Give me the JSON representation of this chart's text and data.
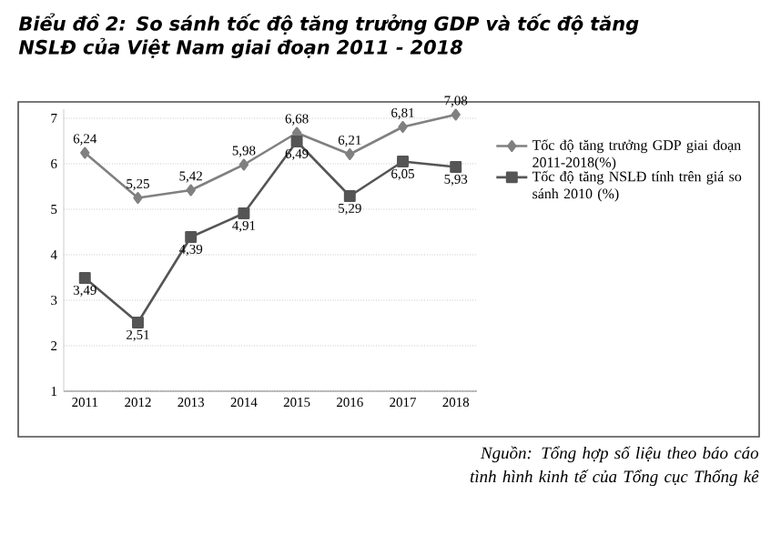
{
  "chart_data": {
    "type": "line",
    "title": "Biểu đồ 2: So sánh tốc độ tăng trưởng GDP và tốc độ tăng NSLĐ của Việt Nam giai đoạn 2011 - 2018",
    "categories": [
      "2011",
      "2012",
      "2013",
      "2014",
      "2015",
      "2016",
      "2017",
      "2018"
    ],
    "series": [
      {
        "name": "Tốc độ tăng trưởng GDP giai đoạn 2011-2018(%)",
        "color": "#808080",
        "marker": "diamond",
        "values": [
          6.24,
          5.25,
          5.42,
          5.98,
          6.68,
          6.21,
          6.81,
          7.08
        ],
        "value_labels": [
          "6,24",
          "5,25",
          "5,42",
          "5,98",
          "6,68",
          "6,21",
          "6,81",
          "7,08"
        ]
      },
      {
        "name": "Tốc độ tăng NSLĐ tính trên giá so sánh 2010 (%)",
        "color": "#555555",
        "marker": "square",
        "values": [
          3.49,
          2.51,
          4.39,
          4.91,
          6.49,
          5.29,
          6.05,
          5.93
        ],
        "value_labels": [
          "3,49",
          "2,51",
          "4,39",
          "4,91",
          "6,49",
          "5,29",
          "6,05",
          "5,93"
        ]
      }
    ],
    "ylim": [
      1,
      7.2
    ],
    "yticks": [
      1,
      2,
      3,
      4,
      5,
      6,
      7
    ],
    "grid": "y",
    "legend": "right",
    "annotations": [
      "Nguồn: Tổng hợp số liệu theo báo cáo tình hình kinh tế của Tổng cục Thống kê"
    ]
  }
}
